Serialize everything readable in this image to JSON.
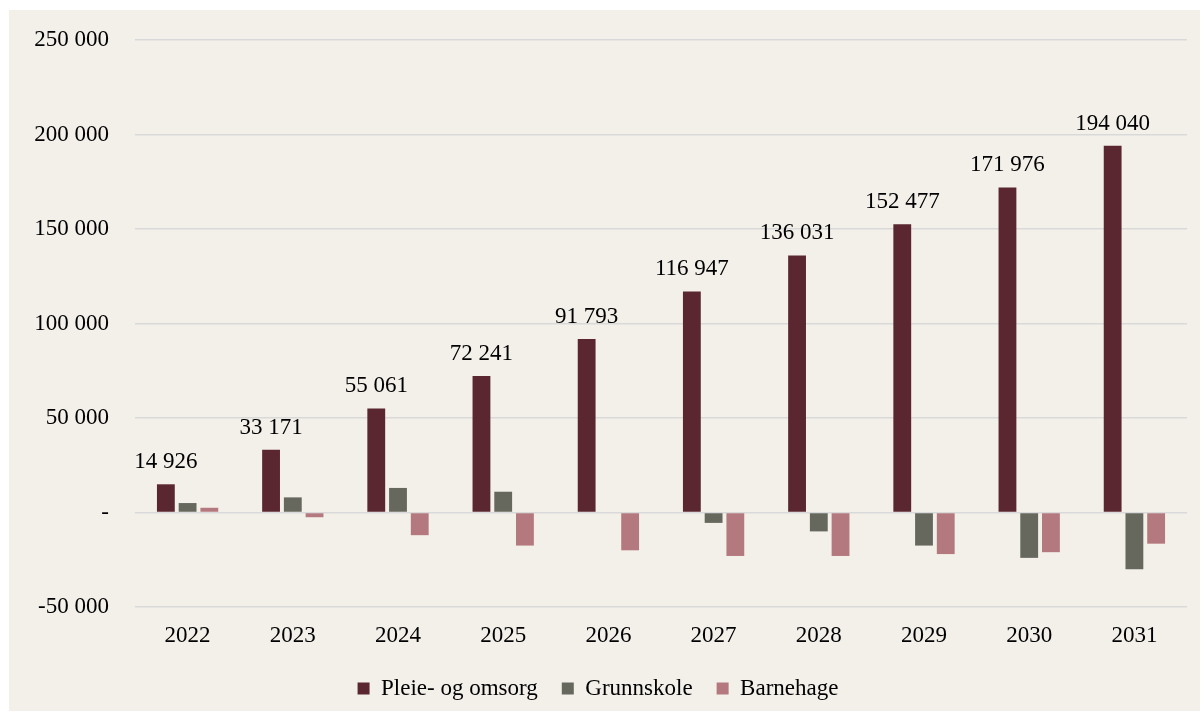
{
  "chart_data": {
    "type": "bar",
    "categories": [
      "2022",
      "2023",
      "2024",
      "2025",
      "2026",
      "2027",
      "2028",
      "2029",
      "2030",
      "2031"
    ],
    "series": [
      {
        "name": "Pleie- og omsorg",
        "color": "#5a2730",
        "values": [
          14926,
          33171,
          55061,
          72241,
          91793,
          116947,
          136031,
          152477,
          171976,
          194040
        ],
        "value_labels": [
          "14 926",
          "33 171",
          "55 061",
          "72 241",
          "91 793",
          "116 947",
          "136 031",
          "152 477",
          "171 976",
          "194 040"
        ]
      },
      {
        "name": "Grunnskole",
        "color": "#66675d",
        "values": [
          5000,
          8000,
          13000,
          11000,
          0,
          -5500,
          -10000,
          -17500,
          -24000,
          -30000
        ]
      },
      {
        "name": "Barnehage",
        "color": "#b4797e",
        "values": [
          2500,
          -2500,
          -12000,
          -17500,
          -20000,
          -23000,
          -23000,
          -22000,
          -21000,
          -16500
        ]
      }
    ],
    "ylim": [
      -50000,
      250000
    ],
    "yticks": [
      {
        "value": -50000,
        "label": "-50 000"
      },
      {
        "value": 0,
        "label": "-"
      },
      {
        "value": 50000,
        "label": "50 000"
      },
      {
        "value": 100000,
        "label": "100 000"
      },
      {
        "value": 150000,
        "label": "150 000"
      },
      {
        "value": 200000,
        "label": "200 000"
      },
      {
        "value": 250000,
        "label": "250 000"
      }
    ],
    "grid": "y",
    "legend": "bottom"
  }
}
